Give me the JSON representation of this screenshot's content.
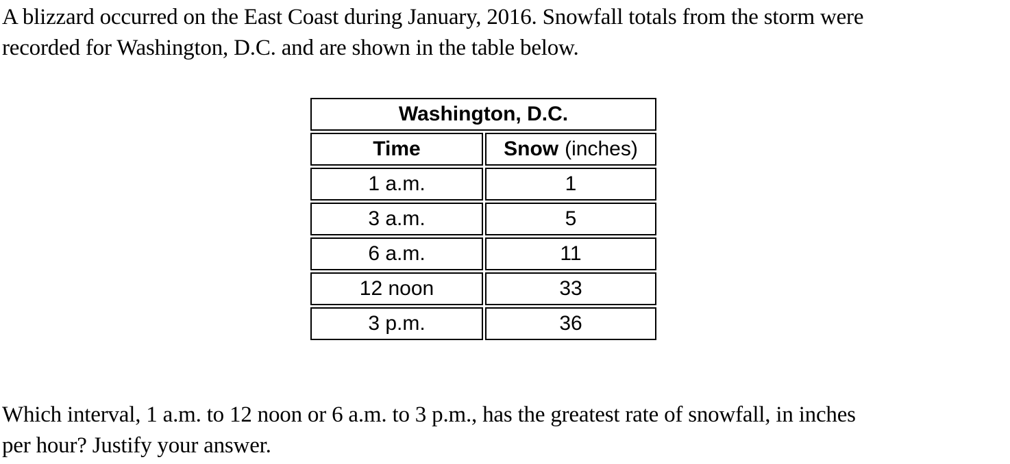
{
  "page": {
    "intro": "A blizzard occurred on the East Coast during January, 2016. Snowfall totals from the storm were\nrecorded for Washington, D.C. and are shown in the table below.",
    "question": "Which interval, 1 a.m. to 12 noon or 6 a.m. to 3 p.m., has the greatest rate of snowfall, in inches\nper hour? Justify your answer."
  },
  "table": {
    "title": "Washington, D.C.",
    "columns": {
      "time": "Time",
      "snow_bold": "Snow",
      "snow_unit": "(inches)"
    },
    "rows": [
      {
        "time": "1 a.m.",
        "snow": "1"
      },
      {
        "time": "3 a.m.",
        "snow": "5"
      },
      {
        "time": "6 a.m.",
        "snow": "11"
      },
      {
        "time": "12 noon",
        "snow": "33"
      },
      {
        "time": "3 p.m.",
        "snow": "36"
      }
    ]
  },
  "colors": {
    "background": "#ffffff",
    "text": "#000000",
    "table_border": "#000000"
  }
}
